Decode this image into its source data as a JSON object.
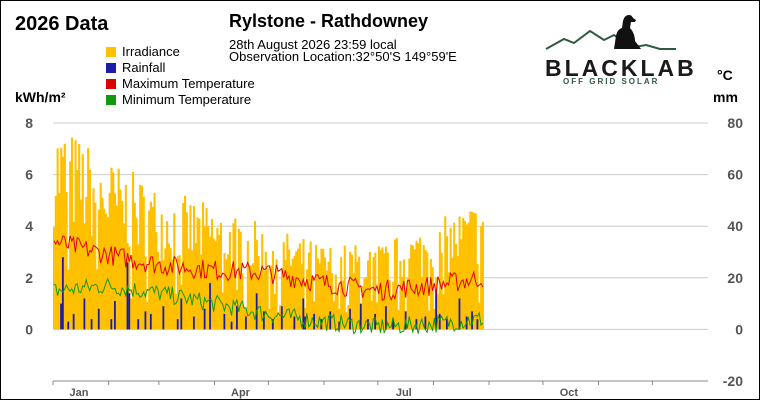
{
  "header": {
    "title": "2026 Data",
    "station": "Rylstone - Rathdowney",
    "observation_time": "28th August 2026  23:59 local",
    "observation_location": "Observation Location:32°50'S 149°59'E"
  },
  "logo": {
    "name": "BLACKLAB",
    "tagline": "OFF GRID SOLAR"
  },
  "colors": {
    "irradiance": "#ffc000",
    "rainfall": "#1c1ca8",
    "max_temp": "#e00000",
    "min_temp": "#119911",
    "grid": "#cccccc",
    "axis_text": "#555555",
    "logo_green": "#2e5a40"
  },
  "chart_data": {
    "type": "bar",
    "x_unit": "day of year",
    "x_range": [
      1,
      365
    ],
    "last_day": 240,
    "month_ticks": [
      "Jan",
      "Apr",
      "Jul",
      "Oct"
    ],
    "left_axis": {
      "label": "kWh/m²",
      "ticks": [
        "8",
        "6",
        "4",
        "2",
        "0"
      ],
      "range": [
        0,
        8
      ]
    },
    "right_axis": {
      "temp_label": "°C",
      "rain_label": "mm",
      "ticks": [
        "80",
        "60",
        "40",
        "20",
        "0",
        "-20"
      ],
      "range": [
        -20,
        80
      ]
    },
    "grid": true,
    "legend_position": "top-left",
    "series": [
      {
        "name": "Irradiance",
        "kind": "bar",
        "axis": "left",
        "segments": [
          [
            1,
            7.2
          ],
          [
            31,
            5.8
          ],
          [
            60,
            4.8
          ],
          [
            90,
            4.2
          ],
          [
            120,
            3.5
          ],
          [
            151,
            2.9
          ],
          [
            181,
            2.9
          ],
          [
            212,
            3.6
          ],
          [
            240,
            4.5
          ]
        ]
      },
      {
        "name": "Rainfall",
        "kind": "bar",
        "axis": "right",
        "events": [
          [
            5,
            10
          ],
          [
            6,
            28
          ],
          [
            9,
            3
          ],
          [
            12,
            6
          ],
          [
            18,
            12
          ],
          [
            22,
            4
          ],
          [
            26,
            8
          ],
          [
            33,
            4
          ],
          [
            35,
            11
          ],
          [
            42,
            26
          ],
          [
            43,
            14
          ],
          [
            48,
            4
          ],
          [
            52,
            7
          ],
          [
            55,
            6
          ],
          [
            62,
            9
          ],
          [
            70,
            4
          ],
          [
            72,
            12
          ],
          [
            79,
            5
          ],
          [
            85,
            8
          ],
          [
            88,
            18
          ],
          [
            96,
            6
          ],
          [
            100,
            3
          ],
          [
            103,
            9
          ],
          [
            108,
            5
          ],
          [
            114,
            14
          ],
          [
            118,
            7
          ],
          [
            123,
            4
          ],
          [
            128,
            9
          ],
          [
            135,
            5
          ],
          [
            140,
            12
          ],
          [
            141,
            5
          ],
          [
            146,
            6
          ],
          [
            150,
            4
          ],
          [
            155,
            7
          ],
          [
            160,
            3
          ],
          [
            166,
            8
          ],
          [
            172,
            10
          ],
          [
            176,
            4
          ],
          [
            180,
            6
          ],
          [
            186,
            9
          ],
          [
            190,
            4
          ],
          [
            197,
            7
          ],
          [
            203,
            4
          ],
          [
            208,
            5
          ],
          [
            214,
            15
          ],
          [
            216,
            6
          ],
          [
            220,
            4
          ],
          [
            227,
            12
          ],
          [
            231,
            5
          ],
          [
            234,
            7
          ],
          [
            237,
            4
          ]
        ]
      },
      {
        "name": "Maximum Temperature",
        "kind": "line",
        "axis": "right",
        "segments": [
          [
            1,
            34
          ],
          [
            31,
            29
          ],
          [
            60,
            25
          ],
          [
            90,
            23
          ],
          [
            120,
            22
          ],
          [
            151,
            18
          ],
          [
            181,
            15
          ],
          [
            212,
            17
          ],
          [
            240,
            20
          ]
        ]
      },
      {
        "name": "Minimum Temperature",
        "kind": "line",
        "axis": "right",
        "segments": [
          [
            1,
            15
          ],
          [
            31,
            17
          ],
          [
            60,
            14
          ],
          [
            90,
            10
          ],
          [
            120,
            6
          ],
          [
            151,
            3
          ],
          [
            181,
            1
          ],
          [
            212,
            2
          ],
          [
            240,
            4
          ]
        ]
      }
    ]
  }
}
